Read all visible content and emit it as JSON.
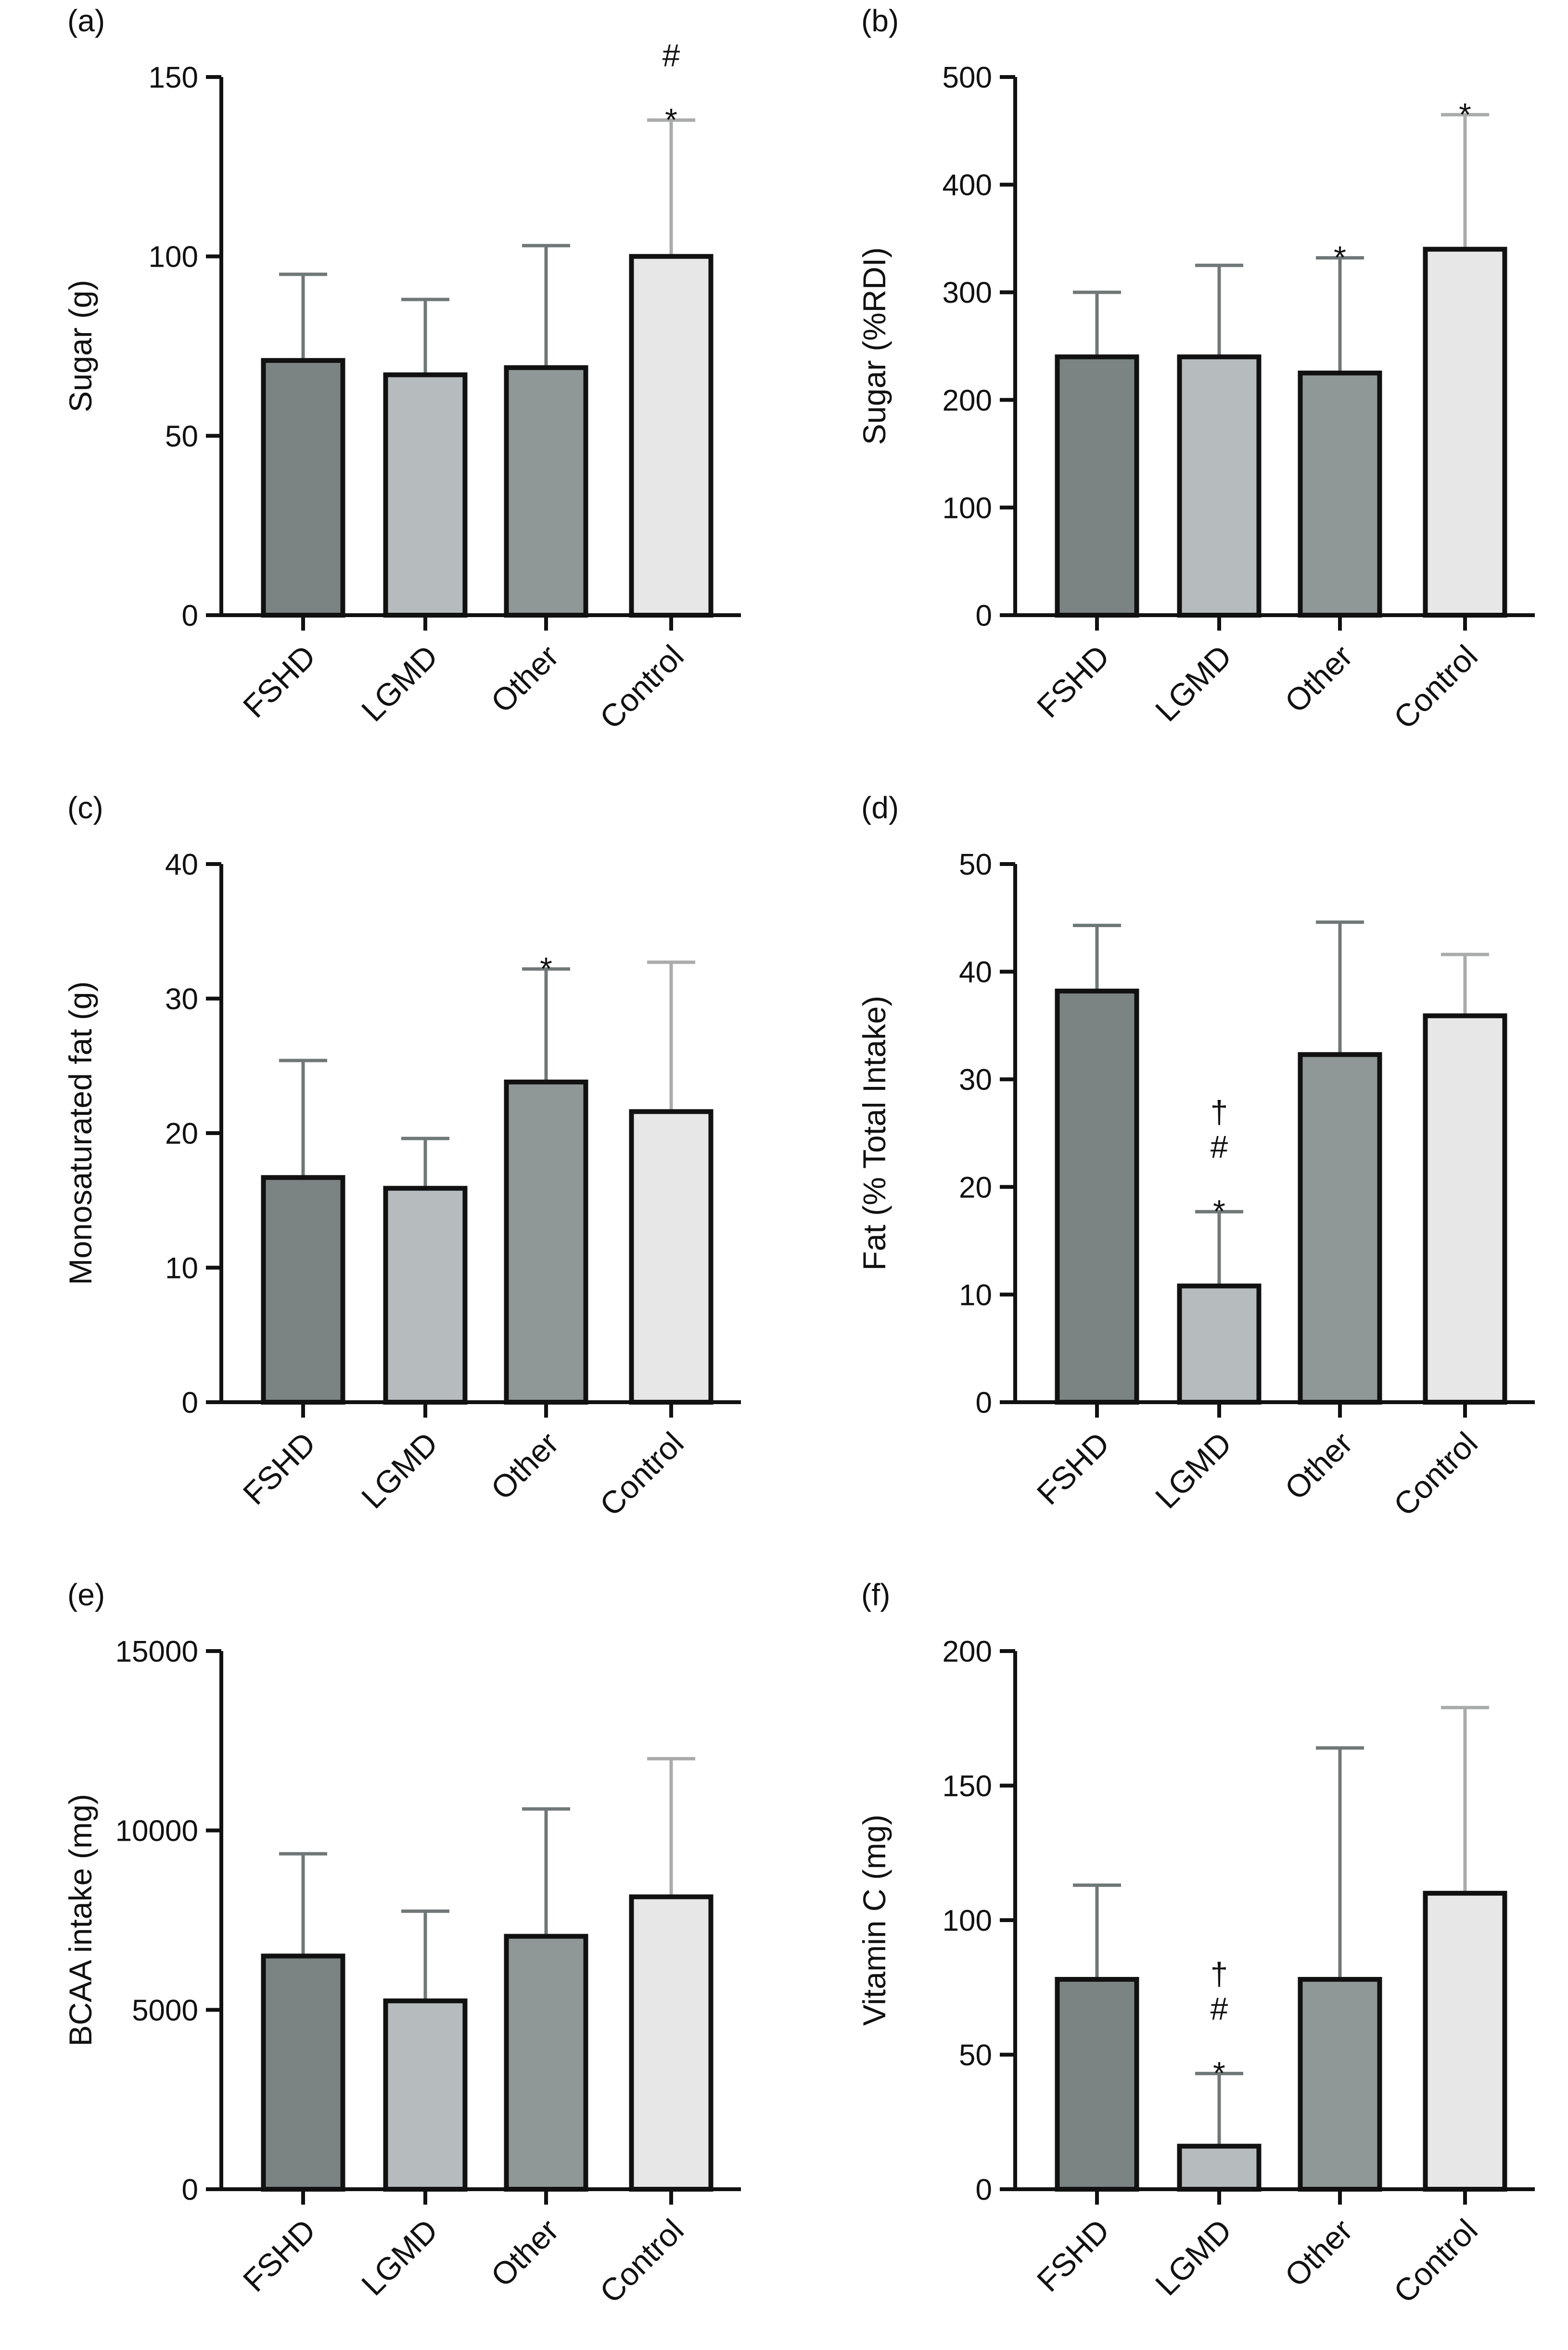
{
  "colors": {
    "FSHD": "#7b8483",
    "LGMD": "#b6bbbe",
    "Other": "#8f9896",
    "Control": "#e6e7e6",
    "axis": "#111111",
    "bar_edge": "#111111"
  },
  "chart_data": [
    {
      "panel": "(a)",
      "type": "bar",
      "ylabel": "Sugar (g)",
      "ylim": [
        0,
        150
      ],
      "yticks": [
        0,
        50,
        100,
        150
      ],
      "categories": [
        "FSHD",
        "LGMD",
        "Other",
        "Control"
      ],
      "values": [
        71,
        67,
        69,
        100
      ],
      "error": [
        24,
        21,
        34,
        38
      ],
      "annotations": [
        [],
        [],
        [],
        [
          "*",
          "#"
        ]
      ]
    },
    {
      "panel": "(b)",
      "type": "bar",
      "ylabel": "Sugar (%RDI)",
      "ylim": [
        0,
        500
      ],
      "yticks": [
        0,
        100,
        200,
        300,
        400,
        500
      ],
      "categories": [
        "FSHD",
        "LGMD",
        "Other",
        "Control"
      ],
      "values": [
        240,
        240,
        225,
        340
      ],
      "error": [
        60,
        85,
        107,
        125
      ],
      "annotations": [
        [],
        [],
        [
          "*"
        ],
        [
          "*"
        ]
      ]
    },
    {
      "panel": "(c)",
      "type": "bar",
      "ylabel": "Monosaturated fat (g)",
      "ylim": [
        0,
        40
      ],
      "yticks": [
        0,
        10,
        20,
        30,
        40
      ],
      "categories": [
        "FSHD",
        "LGMD",
        "Other",
        "Control"
      ],
      "values": [
        16.7,
        15.9,
        23.8,
        21.6
      ],
      "error": [
        8.7,
        3.7,
        8.4,
        11.1
      ],
      "annotations": [
        [],
        [],
        [
          "*"
        ],
        []
      ]
    },
    {
      "panel": "(d)",
      "type": "bar",
      "ylabel": "Fat (% Total Intake)",
      "ylim": [
        0,
        50
      ],
      "yticks": [
        0,
        10,
        20,
        30,
        40,
        50
      ],
      "categories": [
        "FSHD",
        "LGMD",
        "Other",
        "Control"
      ],
      "values": [
        38.2,
        10.8,
        32.3,
        35.9
      ],
      "error": [
        6.1,
        6.9,
        12.3,
        5.7
      ],
      "annotations": [
        [],
        [
          "*",
          "#",
          "†"
        ],
        [],
        []
      ]
    },
    {
      "panel": "(e)",
      "type": "bar",
      "ylabel": "BCAA intake (mg)",
      "ylim": [
        0,
        15000
      ],
      "yticks": [
        0,
        5000,
        10000,
        15000
      ],
      "categories": [
        "FSHD",
        "LGMD",
        "Other",
        "Control"
      ],
      "values": [
        6500,
        5250,
        7050,
        8150
      ],
      "error": [
        2850,
        2500,
        3550,
        3850
      ],
      "annotations": [
        [],
        [],
        [],
        []
      ]
    },
    {
      "panel": "(f)",
      "type": "bar",
      "ylabel": "Vitamin C (mg)",
      "ylim": [
        0,
        200
      ],
      "yticks": [
        0,
        50,
        100,
        150,
        200
      ],
      "categories": [
        "FSHD",
        "LGMD",
        "Other",
        "Control"
      ],
      "values": [
        78,
        16,
        78,
        110
      ],
      "error": [
        35,
        27,
        86,
        69
      ],
      "annotations": [
        [],
        [
          "*",
          "#",
          "†"
        ],
        [],
        []
      ]
    }
  ]
}
